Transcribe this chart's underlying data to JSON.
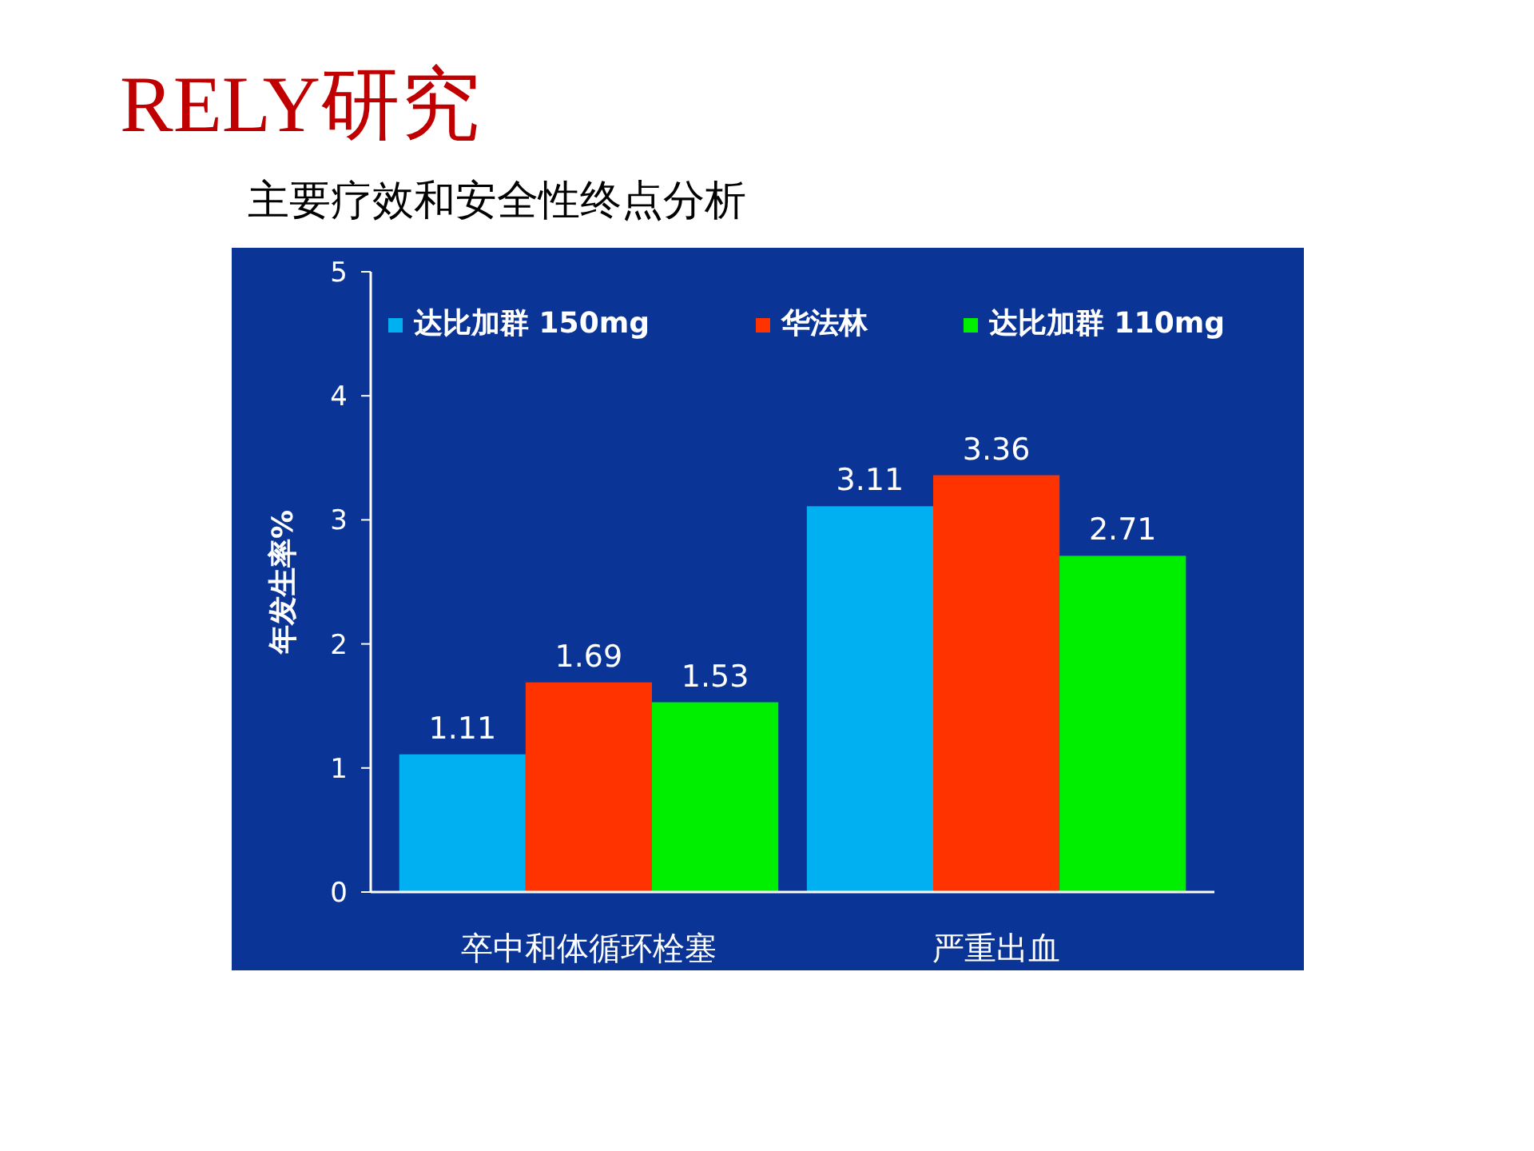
{
  "chart_data": {
    "type": "bar",
    "title": "RELY研究",
    "subtitle": "主要疗效和安全性终点分析",
    "ylabel": "年发生率%",
    "categories": [
      "卒中和体循环栓塞",
      "严重出血"
    ],
    "series": [
      {
        "name": "达比加群 150mg",
        "color": "#00b0f0",
        "values": [
          1.11,
          3.11
        ]
      },
      {
        "name": "华法林",
        "color": "#ff3300",
        "values": [
          1.69,
          3.36
        ]
      },
      {
        "name": "达比加群 110mg",
        "color": "#00ee00",
        "values": [
          1.53,
          2.71
        ]
      }
    ],
    "ylim": [
      0,
      5
    ],
    "yticks": [
      0,
      1,
      2,
      3,
      4,
      5
    ],
    "grid": false,
    "legend": "top",
    "data_labels": true
  }
}
